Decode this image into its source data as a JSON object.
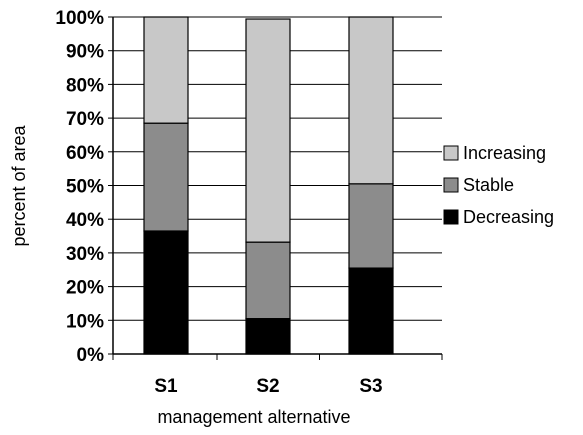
{
  "chart_data": {
    "type": "bar",
    "stacked": true,
    "percent": true,
    "categories": [
      "S1",
      "S2",
      "S3"
    ],
    "series": [
      {
        "name": "Decreasing",
        "values": [
          36.5,
          10.5,
          25.5
        ],
        "color": "#000000"
      },
      {
        "name": "Stable",
        "values": [
          32,
          22.7,
          25
        ],
        "color": "#8c8c8c"
      },
      {
        "name": "Increasing",
        "values": [
          31.5,
          66.2,
          49.5
        ],
        "color": "#c8c8c8"
      }
    ],
    "legend_order": [
      "Increasing",
      "Stable",
      "Decreasing"
    ],
    "title": "",
    "xlabel": "management alternative",
    "ylabel": "percent of area",
    "ylim": [
      0,
      100
    ],
    "yticks": [
      0,
      10,
      20,
      30,
      40,
      50,
      60,
      70,
      80,
      90,
      100
    ],
    "ytick_labels": [
      "0%",
      "10%",
      "20%",
      "30%",
      "40%",
      "50%",
      "60%",
      "70%",
      "80%",
      "90%",
      "100%"
    ],
    "grid": {
      "horizontal": true,
      "vertical": false
    },
    "legend_position": "right"
  }
}
